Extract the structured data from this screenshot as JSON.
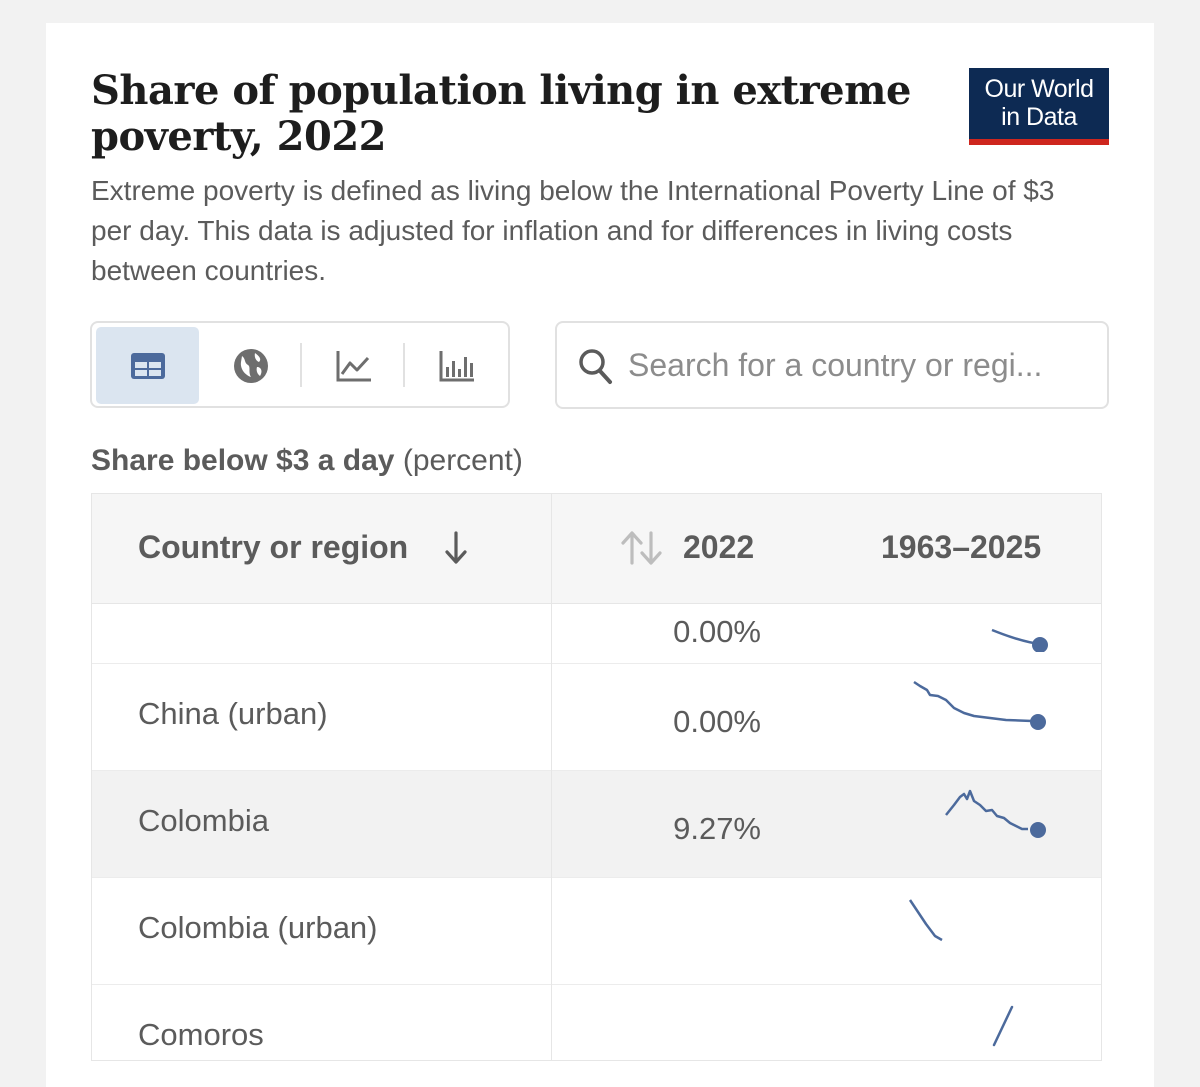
{
  "header": {
    "title": "Share of population living in extreme poverty, 2022",
    "subtitle": "Extreme poverty is defined as living below the International Poverty Line of $3 per day. This data is adjusted for inflation and for differences in living costs between countries.",
    "logo_line1": "Our World",
    "logo_line2": "in Data"
  },
  "view_tabs": [
    {
      "name": "table",
      "icon": "table-icon",
      "active": true
    },
    {
      "name": "map",
      "icon": "globe-icon",
      "active": false
    },
    {
      "name": "line",
      "icon": "line-chart-icon",
      "active": false
    },
    {
      "name": "bar",
      "icon": "bar-chart-icon",
      "active": false
    }
  ],
  "search": {
    "placeholder": "Search for a country or regi..."
  },
  "metric": {
    "name": "Share below $3 a day",
    "unit": "(percent)"
  },
  "table": {
    "col_country": "Country or region",
    "col_year": "2022",
    "col_range": "1963–2025",
    "rows": [
      {
        "name": "",
        "value": "0.00%"
      },
      {
        "name": "China (urban)",
        "value": "0.00%"
      },
      {
        "name": "Colombia",
        "value": "9.27%"
      },
      {
        "name": "Colombia (urban)",
        "value": ""
      },
      {
        "name": "Comoros",
        "value": ""
      }
    ]
  },
  "colors": {
    "accent": "#4c6a9c",
    "logo_bg": "#0d2a53",
    "logo_stripe": "#ce261e",
    "active_tab": "#dbe5f0"
  }
}
